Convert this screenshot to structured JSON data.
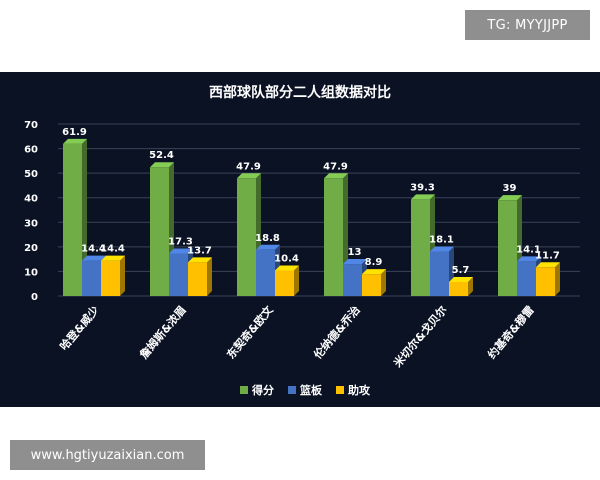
{
  "watermarks": {
    "top": "TG: MYYJJPP",
    "bottom": "www.hgtiyuzaixian.com"
  },
  "chart_data": {
    "type": "bar",
    "title": "西部球队部分二人组数据对比",
    "categories": [
      "哈登&威少",
      "詹姆斯&浓眉",
      "东契奇&欧文",
      "伦纳德&乔治",
      "米切尔&戈贝尔",
      "约基奇&穆雷"
    ],
    "series": [
      {
        "name": "得分",
        "values": [
          61.9,
          52.4,
          47.9,
          47.9,
          39.3,
          39
        ],
        "color": "#70ad47"
      },
      {
        "name": "篮板",
        "values": [
          14.4,
          17.3,
          18.8,
          13,
          18.1,
          14.1
        ],
        "color": "#4472c4"
      },
      {
        "name": "助攻",
        "values": [
          14.4,
          13.7,
          10.4,
          8.9,
          5.7,
          11.7
        ],
        "color": "#ffc000"
      }
    ],
    "ylim": [
      0,
      70
    ],
    "yticks": [
      0,
      10,
      20,
      30,
      40,
      50,
      60,
      70
    ],
    "xlabel": "",
    "ylabel": "",
    "grid": true,
    "legend_position": "bottom"
  }
}
